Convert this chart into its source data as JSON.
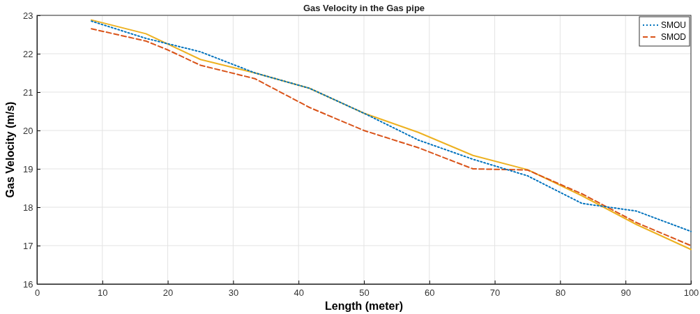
{
  "chart_data": {
    "type": "line",
    "title": "Gas Velocity  in the Gas pipe",
    "xlabel": "Length (meter)",
    "ylabel": "Gas Velocity (m/s)",
    "xlim": [
      0,
      100
    ],
    "xticks": [
      0,
      10,
      20,
      30,
      40,
      50,
      60,
      70,
      80,
      90,
      100
    ],
    "ylim": [
      16,
      23
    ],
    "yticks": [
      16,
      17,
      18,
      19,
      20,
      21,
      22,
      23
    ],
    "grid": true,
    "legend": "top right",
    "series": [
      {
        "name": "SMOU",
        "color": "#0072bd",
        "line_style": "dotted",
        "x": [
          8.33,
          16.67,
          25,
          33.33,
          41.67,
          50,
          58.33,
          66.67,
          75,
          83.33,
          91.67,
          100
        ],
        "values": [
          22.85,
          22.4,
          22.05,
          21.5,
          21.1,
          20.45,
          19.75,
          19.25,
          18.82,
          18.1,
          17.9,
          17.37
        ]
      },
      {
        "name": "SMOD",
        "color": "#d95319",
        "line_style": "dashed",
        "x": [
          8.33,
          16.67,
          20,
          25,
          33.33,
          41.67,
          50,
          58.33,
          66.67,
          75,
          83.33,
          91.67,
          100
        ],
        "values": [
          22.65,
          22.33,
          22.1,
          21.7,
          21.35,
          20.6,
          20.0,
          19.55,
          19.0,
          18.97,
          18.35,
          17.6,
          17.0
        ]
      },
      {
        "color": "#edb120",
        "line_style": "solid",
        "x": [
          8.33,
          16.67,
          25,
          33.33,
          41.67,
          50,
          58.33,
          66.67,
          75,
          83.33,
          91.67,
          100
        ],
        "values": [
          22.88,
          22.52,
          21.85,
          21.5,
          21.1,
          20.45,
          19.95,
          19.35,
          18.98,
          18.3,
          17.55,
          16.9
        ]
      }
    ]
  }
}
